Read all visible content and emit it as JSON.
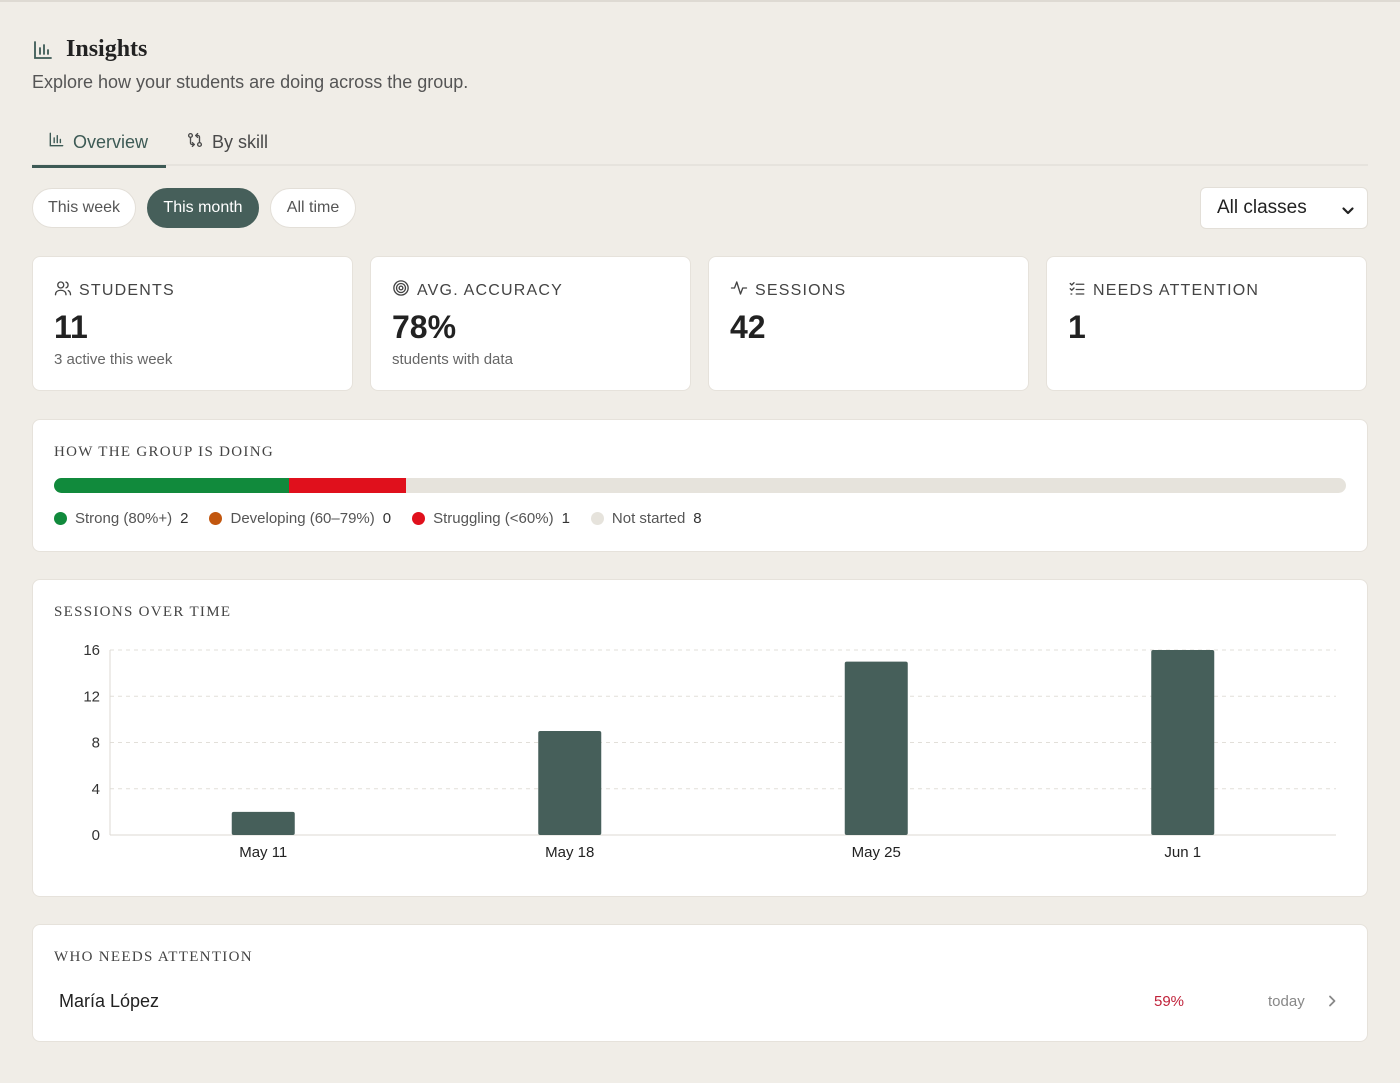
{
  "header": {
    "title": "Insights",
    "subtitle": "Explore how your students are doing across the group.",
    "icon": "bar-chart-icon"
  },
  "tabs": [
    {
      "label": "Overview",
      "icon": "bar-chart-icon",
      "active": true
    },
    {
      "label": "By skill",
      "icon": "git-compare-icon",
      "active": false
    }
  ],
  "filters": {
    "periods": [
      {
        "label": "This week",
        "active": false
      },
      {
        "label": "This month",
        "active": true
      },
      {
        "label": "All time",
        "active": false
      }
    ],
    "class_select": {
      "value": "All classes"
    }
  },
  "stats": [
    {
      "label": "STUDENTS",
      "icon": "users-icon",
      "value": "11",
      "sub": "3 active this week"
    },
    {
      "label": "AVG. ACCURACY",
      "icon": "target-icon",
      "value": "78%",
      "sub": "students with data"
    },
    {
      "label": "SESSIONS",
      "icon": "activity-icon",
      "value": "42",
      "sub": ""
    },
    {
      "label": "NEEDS ATTENTION",
      "icon": "checklist-icon",
      "value": "1",
      "sub": ""
    }
  ],
  "group": {
    "title": "HOW THE GROUP IS DOING",
    "total": 11,
    "segments": [
      {
        "label": "Strong (80%+)",
        "count": 2,
        "color": "#118a3c"
      },
      {
        "label": "Developing (60–79%)",
        "count": 0,
        "color": "#c2570f"
      },
      {
        "label": "Struggling (<60%)",
        "count": 1,
        "color": "#e0101c"
      },
      {
        "label": "Not started",
        "count": 8,
        "color": "#e6e3dc"
      }
    ]
  },
  "sessions_chart": {
    "title": "SESSIONS OVER TIME",
    "bar_color": "#465f5a"
  },
  "chart_data": {
    "type": "bar",
    "categories": [
      "May 11",
      "May 18",
      "May 25",
      "Jun 1"
    ],
    "values": [
      2,
      9,
      15,
      16
    ],
    "title": "SESSIONS OVER TIME",
    "xlabel": "",
    "ylabel": "",
    "ylim": [
      0,
      16
    ],
    "yticks": [
      0,
      4,
      8,
      12,
      16
    ],
    "grid": true
  },
  "attention": {
    "title": "WHO NEEDS ATTENTION",
    "rows": [
      {
        "name": "María López",
        "accuracy": "59%",
        "last_active": "today",
        "accent": "#c0223a"
      }
    ]
  }
}
